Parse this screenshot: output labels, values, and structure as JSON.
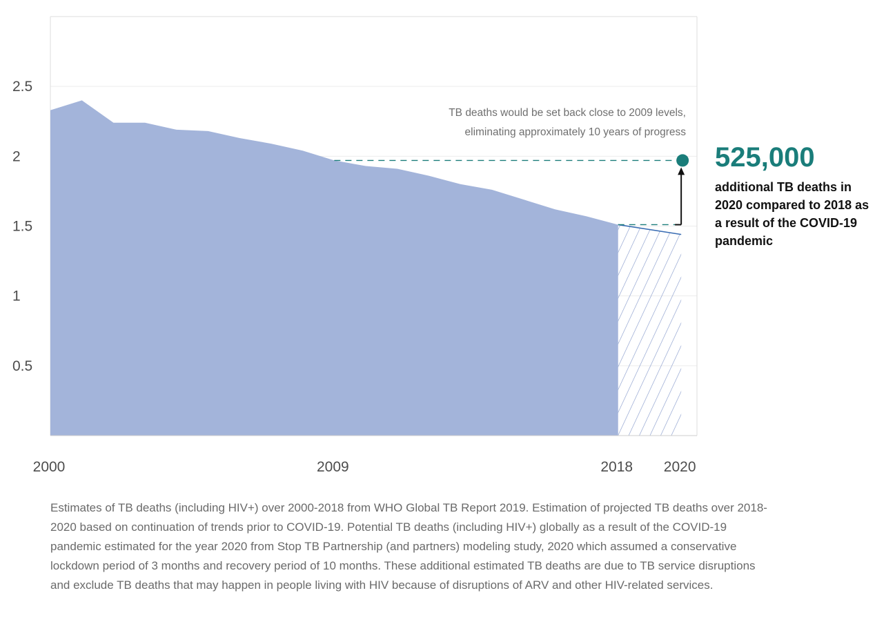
{
  "chart_data": {
    "type": "area",
    "x": [
      2000,
      2001,
      2002,
      2003,
      2004,
      2005,
      2006,
      2007,
      2008,
      2009,
      2010,
      2011,
      2012,
      2013,
      2014,
      2015,
      2016,
      2017,
      2018
    ],
    "series": [
      {
        "values": [
          2.33,
          2.4,
          2.24,
          2.24,
          2.19,
          2.18,
          2.13,
          2.09,
          2.04,
          1.97,
          1.93,
          1.91,
          1.86,
          1.8,
          1.76,
          1.69,
          1.62,
          1.57,
          1.51
        ],
        "color": "#a3b4da"
      }
    ],
    "projection": {
      "x": [
        2018,
        2020
      ],
      "values": [
        1.51,
        1.44
      ],
      "color": "#3a6db3",
      "fill": "hatched"
    },
    "reference_lines": [
      {
        "y": 1.97,
        "from": 2009,
        "to": 2020,
        "style": "dashed",
        "color": "#1a7d7a"
      },
      {
        "y": 1.51,
        "from": 2018,
        "to": 2020,
        "style": "dashed",
        "color": "#1a7d7a"
      }
    ],
    "xticks": [
      "2000",
      "2009",
      "2018",
      "2020"
    ],
    "yticks": [
      "0.5",
      "1",
      "1.5",
      "2",
      "2.5"
    ],
    "ylim": [
      0,
      3.0
    ],
    "xlim": [
      2000,
      2020.5
    ],
    "grid": true,
    "colors": {
      "area": "#a3b4da",
      "accent": "#1a7d7a",
      "projection": "#3a6db3"
    },
    "annotation_note": [
      "TB deaths would be set back close to 2009 levels,",
      "eliminating approximately 10 years of progress"
    ],
    "callout": {
      "value": "525,000",
      "text": "additional TB deaths in 2020 compared to 2018 as a result of the COVID-19 pandemic"
    }
  },
  "caption": "Estimates of TB deaths (including HIV+) over 2000-2018 from WHO Global TB Report 2019. Estimation of projected TB deaths over 2018-2020 based on continuation of trends prior to COVID-19. Potential TB deaths (including HIV+) globally as a result of the COVID-19 pandemic estimated for the year 2020 from Stop TB Partnership (and partners) modeling study, 2020 which assumed a conservative lockdown period of 3 months and recovery period of 10 months. These additional estimated TB deaths are due to TB service disruptions and exclude TB deaths that may happen in people living with HIV because of disruptions of ARV and other HIV-related services."
}
